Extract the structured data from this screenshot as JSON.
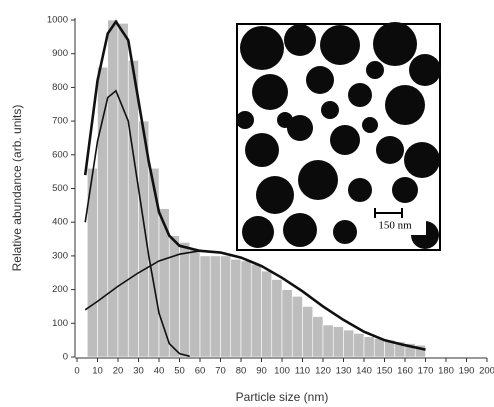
{
  "chart_data": {
    "type": "histogram",
    "x_label": "Particle size (nm)",
    "y_label": "Relative abundance (arb. units)",
    "bins": [
      5,
      10,
      15,
      20,
      25,
      30,
      35,
      40,
      45,
      50,
      55,
      60,
      65,
      70,
      75,
      80,
      85,
      90,
      95,
      100,
      105,
      110,
      115,
      120,
      125,
      130,
      135,
      140,
      145,
      150,
      155,
      160,
      165,
      170
    ],
    "values": [
      560,
      860,
      1000,
      990,
      880,
      700,
      560,
      440,
      360,
      340,
      320,
      300,
      300,
      300,
      290,
      285,
      275,
      255,
      230,
      200,
      180,
      150,
      120,
      95,
      90,
      80,
      70,
      60,
      55,
      50,
      45,
      40,
      35
    ],
    "color": "#bdbdbd",
    "curves": [
      {
        "color": "#111111",
        "x": [
          4,
          10,
          15,
          19,
          25,
          30,
          35,
          40,
          45,
          50,
          60,
          70,
          80,
          90,
          100,
          110,
          120,
          130,
          140,
          150,
          160,
          170
        ],
        "values": [
          540,
          820,
          960,
          995,
          940,
          760,
          580,
          430,
          360,
          330,
          315,
          310,
          295,
          270,
          235,
          195,
          150,
          110,
          75,
          50,
          35,
          22
        ]
      },
      {
        "color": "#111111",
        "x": [
          4,
          10,
          15,
          19,
          25,
          30,
          35,
          40,
          45,
          50,
          55
        ],
        "values": [
          400,
          640,
          770,
          790,
          700,
          500,
          300,
          130,
          40,
          10,
          2
        ]
      },
      {
        "color": "#111111",
        "x": [
          4,
          10,
          20,
          30,
          40,
          50,
          60,
          70,
          80,
          90,
          100,
          110,
          120,
          130,
          140,
          150,
          160,
          170
        ],
        "values": [
          140,
          165,
          210,
          250,
          285,
          305,
          315,
          310,
          295,
          270,
          235,
          195,
          150,
          110,
          75,
          50,
          35,
          22
        ]
      }
    ],
    "xlim": [
      0,
      200
    ],
    "xticks": [
      0,
      10,
      20,
      30,
      40,
      50,
      60,
      70,
      80,
      90,
      100,
      110,
      120,
      130,
      140,
      150,
      160,
      170,
      180,
      190,
      200
    ],
    "ylim": [
      0,
      1000
    ],
    "yticks": [
      0,
      100,
      200,
      300,
      400,
      500,
      600,
      700,
      800,
      900,
      1000
    ],
    "inset": {
      "scale_label": "150 nm"
    }
  }
}
